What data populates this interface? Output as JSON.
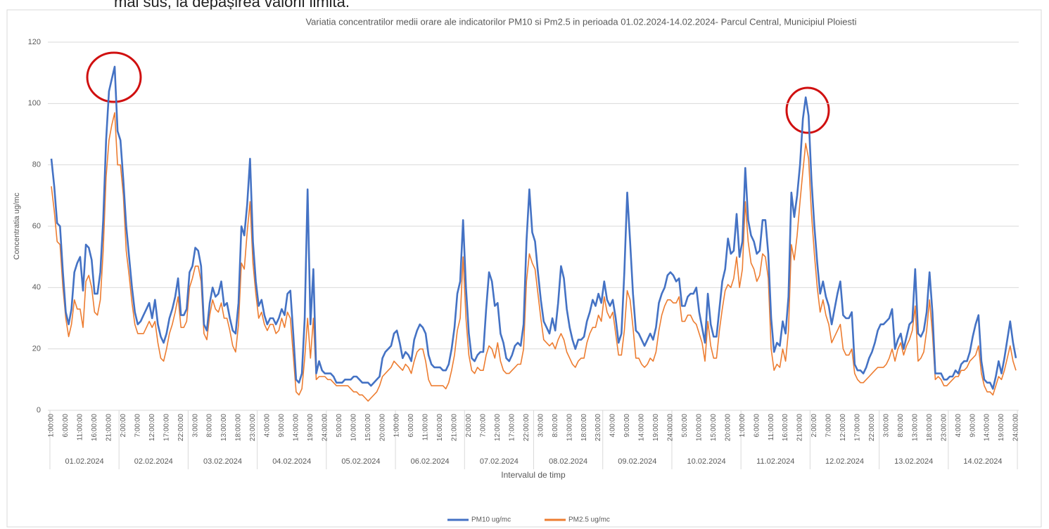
{
  "caption_fragment": "mai sus, la depășirea valorii limită.",
  "chart_data": {
    "type": "line",
    "title": "Variatia concentratilor medii orare ale  indicatorilor PM10 si Pm2.5 in perioada 01.02.2024-14.02.2024- Parcul Central, Municipiul Ploiesti",
    "y_label": "Concentratia ug/mc",
    "x_label": "Intervalul de timp",
    "ylim": [
      0,
      120
    ],
    "yticks": [
      0,
      20,
      40,
      60,
      80,
      100,
      120
    ],
    "grid": true,
    "legend": "bottom",
    "x_groups": [
      "01.02.2024",
      "02.02.2024",
      "03.02.2024",
      "04.02.2024",
      "05.02.2024",
      "06.02.2024",
      "07.02.2024",
      "08.02.2024",
      "09.02.2024",
      "10.02.2024",
      "11.02.2024",
      "12.02.2024",
      "13.02.2024",
      "14.02.2024"
    ],
    "categories": [
      "1:00:00",
      null,
      null,
      null,
      null,
      "6:00:00",
      null,
      null,
      null,
      null,
      "11:00:00",
      null,
      null,
      null,
      null,
      "16:00:00",
      null,
      null,
      null,
      null,
      "21:00:00",
      null,
      null,
      null,
      null,
      "2:00:00",
      null,
      null,
      null,
      null,
      "7:00:00",
      null,
      null,
      null,
      null,
      "12:00:00",
      null,
      null,
      null,
      null,
      "17:00:00",
      null,
      null,
      null,
      null,
      "22:00:00",
      null,
      null,
      null,
      null,
      "3:00:00",
      null,
      null,
      null,
      null,
      "8:00:00",
      null,
      null,
      null,
      null,
      "13:00:00",
      null,
      null,
      null,
      null,
      "18:00:00",
      null,
      null,
      null,
      null,
      "23:00:00",
      null,
      null,
      null,
      null,
      "4:00:00",
      null,
      null,
      null,
      null,
      "9:00:00",
      null,
      null,
      null,
      null,
      "14:00:00",
      null,
      null,
      null,
      null,
      "19:00:00",
      null,
      null,
      null,
      null,
      "24:00:00",
      null,
      null,
      null,
      null,
      "5:00:00",
      null,
      null,
      null,
      null,
      "10:00:00",
      null,
      null,
      null,
      null,
      "15:00:00",
      null,
      null,
      null,
      null,
      "20:00:00",
      null,
      null,
      null,
      null,
      "1:00:00",
      null,
      null,
      null,
      null,
      "6:00:00",
      null,
      null,
      null,
      null,
      "11:00:00",
      null,
      null,
      null,
      null,
      "16:00:00",
      null,
      null,
      null,
      null,
      "21:00:00",
      null,
      null,
      null,
      null,
      "2:00:00",
      null,
      null,
      null,
      null,
      "7:00:00",
      null,
      null,
      null,
      null,
      "12:00:00",
      null,
      null,
      null,
      null,
      "17:00:00",
      null,
      null,
      null,
      null,
      "22:00:00",
      null,
      null,
      null,
      null,
      "3:00:00",
      null,
      null,
      null,
      null,
      "8:00:00",
      null,
      null,
      null,
      null,
      "13:00:00",
      null,
      null,
      null,
      null,
      "18:00:00",
      null,
      null,
      null,
      null,
      "23:00:00",
      null,
      null,
      null,
      null,
      "4:00:00",
      null,
      null,
      null,
      null,
      "9:00:00",
      null,
      null,
      null,
      null,
      "14:00:00",
      null,
      null,
      null,
      null,
      "19:00:00",
      null,
      null,
      null,
      null,
      "24:00:00",
      null,
      null,
      null,
      null,
      "5:00:00",
      null,
      null,
      null,
      null,
      "10:00:00",
      null,
      null,
      null,
      null,
      "15:00:00",
      null,
      null,
      null,
      null,
      "20:00:00",
      null,
      null,
      null,
      null,
      "1:00:00",
      null,
      null,
      null,
      null,
      "6:00:00",
      null,
      null,
      null,
      null,
      "11:00:00",
      null,
      null,
      null,
      null,
      "16:00:00",
      null,
      null,
      null,
      null,
      "21:00:00",
      null,
      null,
      null,
      null,
      "2:00:00",
      null,
      null,
      null,
      null,
      "7:00:00",
      null,
      null,
      null,
      null,
      "12:00:00",
      null,
      null,
      null,
      null,
      "17:00:00",
      null,
      null,
      null,
      null,
      "22:00:00",
      null,
      null,
      null,
      null,
      "3:00:00",
      null,
      null,
      null,
      null,
      "8:00:00",
      null,
      null,
      null,
      null,
      "13:00:00",
      null,
      null,
      null,
      null,
      "18:00:00",
      null,
      null,
      null,
      null,
      "23:00:00",
      null,
      null,
      null,
      null,
      "4:00:00",
      null,
      null,
      null,
      null,
      "9:00:00",
      null,
      null,
      null,
      null,
      "14:00:00",
      null,
      null,
      null,
      null,
      "19:00:00",
      null,
      null,
      null,
      null,
      "24:00:00"
    ],
    "series": [
      {
        "name": "PM10 ug/mc",
        "color": "#4472c4",
        "values": [
          82,
          73,
          61,
          60,
          45,
          32,
          28,
          33,
          45,
          48,
          50,
          39,
          54,
          53,
          49,
          38,
          38,
          45,
          62,
          88,
          104,
          108,
          112,
          91,
          88,
          75,
          60,
          50,
          40,
          32,
          28,
          29,
          31,
          33,
          35,
          30,
          36,
          28,
          24,
          22,
          25,
          30,
          33,
          37,
          43,
          31,
          31,
          33,
          45,
          47,
          53,
          52,
          47,
          28,
          26,
          35,
          40,
          37,
          38,
          42,
          34,
          35,
          30,
          26,
          25,
          35,
          60,
          57,
          67,
          82,
          55,
          42,
          34,
          36,
          31,
          28,
          30,
          30,
          28,
          30,
          33,
          31,
          38,
          39,
          25,
          10,
          9,
          12,
          30,
          72,
          28,
          46,
          12,
          16,
          13,
          12,
          12,
          12,
          11,
          9,
          9,
          9,
          10,
          10,
          10,
          11,
          11,
          10,
          9,
          9,
          9,
          8,
          9,
          10,
          11,
          17,
          19,
          20,
          21,
          25,
          26,
          22,
          17,
          19,
          18,
          16,
          23,
          26,
          28,
          27,
          25,
          18,
          15,
          14,
          14,
          14,
          13,
          13,
          15,
          20,
          27,
          38,
          42,
          62,
          40,
          25,
          17,
          16,
          18,
          19,
          19,
          33,
          45,
          42,
          34,
          35,
          25,
          22,
          17,
          16,
          18,
          21,
          22,
          21,
          28,
          55,
          72,
          58,
          55,
          45,
          36,
          29,
          27,
          25,
          30,
          26,
          35,
          47,
          43,
          33,
          27,
          23,
          20,
          23,
          23,
          24,
          29,
          32,
          36,
          34,
          38,
          35,
          42,
          36,
          34,
          36,
          30,
          22,
          25,
          45,
          71,
          55,
          38,
          26,
          25,
          23,
          21,
          23,
          25,
          23,
          27,
          35,
          38,
          40,
          44,
          45,
          44,
          42,
          43,
          34,
          34,
          37,
          38,
          38,
          40,
          32,
          27,
          22,
          38,
          28,
          24,
          24,
          33,
          42,
          46,
          56,
          51,
          52,
          64,
          50,
          55,
          79,
          62,
          57,
          55,
          51,
          52,
          62,
          62,
          51,
          30,
          19,
          22,
          21,
          29,
          25,
          37,
          71,
          63,
          70,
          80,
          95,
          102,
          96,
          75,
          60,
          48,
          38,
          42,
          37,
          34,
          28,
          33,
          38,
          42,
          31,
          30,
          30,
          32,
          15,
          13,
          13,
          12,
          14,
          17,
          19,
          22,
          26,
          28,
          28,
          29,
          30,
          33,
          20,
          23,
          25,
          20,
          24,
          28,
          29,
          46,
          25,
          24,
          26,
          32,
          45,
          32,
          12,
          12,
          12,
          10,
          10,
          11,
          11,
          13,
          12,
          15,
          16,
          16,
          19,
          24,
          28,
          31,
          16,
          10,
          9,
          9,
          7,
          11,
          16,
          12,
          17,
          23,
          29,
          22,
          17
        ]
      },
      {
        "name": "PM2.5 ug/mc",
        "color": "#ed7d31",
        "values": [
          73,
          65,
          55,
          54,
          40,
          30,
          24,
          28,
          36,
          33,
          33,
          27,
          42,
          44,
          40,
          32,
          31,
          36,
          52,
          76,
          88,
          93,
          97,
          80,
          80,
          70,
          52,
          44,
          35,
          28,
          25,
          25,
          25,
          27,
          29,
          27,
          29,
          22,
          17,
          16,
          20,
          25,
          28,
          32,
          37,
          27,
          27,
          29,
          40,
          43,
          47,
          47,
          42,
          25,
          23,
          31,
          36,
          33,
          32,
          35,
          30,
          30,
          26,
          21,
          19,
          28,
          48,
          46,
          58,
          68,
          48,
          38,
          30,
          32,
          28,
          26,
          28,
          28,
          25,
          26,
          30,
          27,
          32,
          30,
          18,
          6,
          5,
          7,
          17,
          30,
          17,
          30,
          10,
          11,
          11,
          11,
          10,
          10,
          9,
          8,
          8,
          8,
          8,
          8,
          7,
          6,
          6,
          5,
          5,
          4,
          3,
          4,
          5,
          6,
          8,
          11,
          12,
          13,
          14,
          16,
          15,
          14,
          13,
          15,
          14,
          12,
          16,
          19,
          20,
          20,
          16,
          10,
          8,
          8,
          8,
          8,
          8,
          7,
          9,
          13,
          18,
          26,
          30,
          50,
          30,
          18,
          13,
          12,
          14,
          13,
          13,
          18,
          21,
          20,
          17,
          22,
          16,
          13,
          12,
          12,
          13,
          14,
          15,
          15,
          20,
          42,
          51,
          48,
          46,
          38,
          30,
          23,
          22,
          21,
          22,
          20,
          23,
          25,
          23,
          19,
          17,
          15,
          14,
          16,
          17,
          17,
          22,
          25,
          27,
          27,
          31,
          29,
          37,
          32,
          30,
          32,
          25,
          18,
          18,
          26,
          39,
          36,
          27,
          17,
          17,
          15,
          14,
          15,
          17,
          16,
          19,
          26,
          31,
          34,
          36,
          36,
          35,
          35,
          37,
          29,
          29,
          31,
          31,
          29,
          28,
          25,
          22,
          16,
          29,
          21,
          17,
          17,
          26,
          33,
          39,
          41,
          40,
          43,
          50,
          40,
          46,
          68,
          55,
          48,
          46,
          42,
          44,
          51,
          50,
          43,
          20,
          13,
          15,
          14,
          20,
          16,
          26,
          54,
          49,
          57,
          68,
          78,
          87,
          82,
          64,
          51,
          40,
          32,
          36,
          31,
          28,
          22,
          24,
          26,
          28,
          20,
          18,
          18,
          20,
          12,
          10,
          9,
          9,
          10,
          11,
          12,
          13,
          14,
          14,
          14,
          15,
          17,
          20,
          16,
          20,
          22,
          18,
          21,
          23,
          26,
          34,
          16,
          17,
          19,
          26,
          36,
          25,
          10,
          11,
          10,
          8,
          8,
          9,
          10,
          11,
          11,
          13,
          13,
          14,
          16,
          17,
          18,
          21,
          12,
          8,
          6,
          6,
          5,
          8,
          11,
          10,
          13,
          17,
          21,
          16,
          13
        ]
      }
    ]
  }
}
